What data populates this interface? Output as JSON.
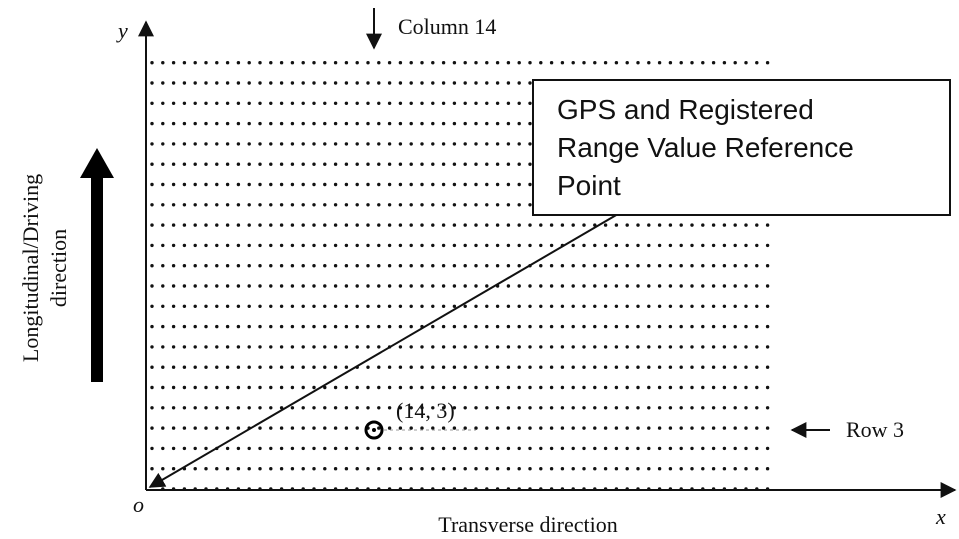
{
  "axes": {
    "y_label": "y",
    "x_label": "x",
    "origin_label": "o",
    "x_title": "Transverse direction",
    "y_title": [
      "Longitudinal/Driving",
      "direction"
    ]
  },
  "annotations": {
    "column": "Column 14",
    "row": "Row 3",
    "point": "(14, 3)"
  },
  "callout": {
    "lines": [
      "GPS and Registered",
      "Range Value Reference",
      "Point"
    ]
  }
}
